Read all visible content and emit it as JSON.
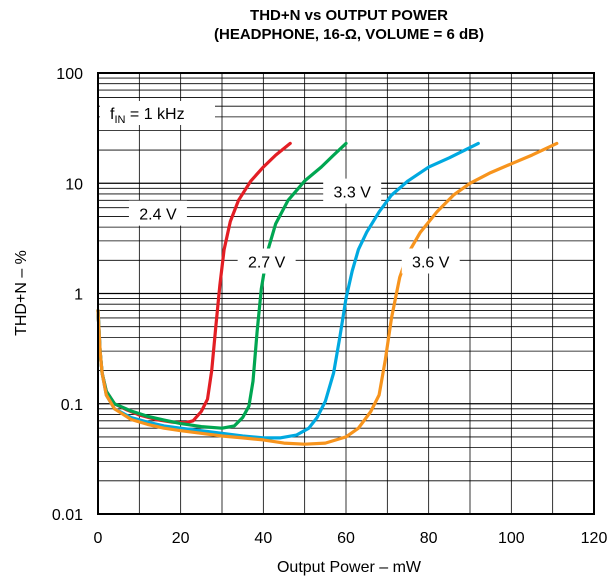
{
  "chart_data": {
    "type": "line",
    "title": "THD+N vs OUTPUT POWER",
    "subtitle": "(HEADPHONE, 16-Ω, VOLUME = 6 dB)",
    "xlabel": "Output Power – mW",
    "ylabel": "THD+N – %",
    "xlim": [
      0,
      120
    ],
    "ylim": [
      0.01,
      100
    ],
    "yscale": "log",
    "grid": true,
    "x_ticks": [
      "0",
      "20",
      "40",
      "60",
      "80",
      "100",
      "120"
    ],
    "y_ticks": [
      "0.01",
      "0.1",
      "1",
      "10",
      "100"
    ],
    "annotation": {
      "main": "f",
      "sub": "IN",
      "rest": " = 1 kHz"
    },
    "series": [
      {
        "name": "2.4 V",
        "color": "#e31e24",
        "x": [
          0,
          0.5,
          1,
          2,
          4,
          7,
          10,
          14,
          18,
          21,
          23,
          25,
          26.5,
          27.5,
          28.5,
          29.5,
          30.5,
          32,
          34,
          37,
          40,
          43,
          46.5
        ],
        "y": [
          0.7,
          0.3,
          0.19,
          0.13,
          0.1,
          0.088,
          0.079,
          0.072,
          0.068,
          0.067,
          0.07,
          0.085,
          0.11,
          0.2,
          0.5,
          1.2,
          2.5,
          4.5,
          7,
          10.5,
          14,
          18,
          23
        ]
      },
      {
        "name": "2.7 V",
        "color": "#00a651",
        "x": [
          0,
          0.5,
          1,
          2,
          4,
          8,
          12,
          16,
          20,
          25,
          30,
          33,
          35,
          36.5,
          37.5,
          38.5,
          39.5,
          41,
          43,
          46,
          50,
          54,
          57,
          60
        ],
        "y": [
          0.7,
          0.3,
          0.19,
          0.13,
          0.1,
          0.086,
          0.077,
          0.071,
          0.066,
          0.062,
          0.06,
          0.063,
          0.075,
          0.095,
          0.16,
          0.45,
          1.1,
          2.4,
          4.3,
          7,
          10.5,
          14,
          18,
          23
        ]
      },
      {
        "name": "3.3 V",
        "color": "#00a9e0",
        "x": [
          0,
          0.5,
          1,
          2,
          4,
          8,
          12,
          16,
          20,
          25,
          30,
          35,
          40,
          44,
          48,
          51,
          53,
          55,
          57,
          58.5,
          60,
          61.5,
          63,
          65,
          68,
          71,
          75,
          80,
          85,
          92
        ],
        "y": [
          0.7,
          0.3,
          0.19,
          0.12,
          0.09,
          0.075,
          0.068,
          0.063,
          0.06,
          0.057,
          0.054,
          0.051,
          0.049,
          0.049,
          0.052,
          0.06,
          0.075,
          0.105,
          0.19,
          0.4,
          0.9,
          1.6,
          2.5,
          3.6,
          5.5,
          7.8,
          10.5,
          14,
          17,
          23
        ]
      },
      {
        "name": "3.6 V",
        "color": "#f7941d",
        "x": [
          0,
          0.5,
          1,
          2,
          4,
          8,
          12,
          16,
          20,
          25,
          30,
          35,
          40,
          45,
          50,
          55,
          60,
          63,
          66,
          68,
          69.5,
          71,
          73,
          75,
          78,
          82,
          86,
          90,
          95,
          100,
          105,
          111
        ],
        "y": [
          0.7,
          0.3,
          0.19,
          0.12,
          0.09,
          0.072,
          0.065,
          0.06,
          0.057,
          0.054,
          0.051,
          0.049,
          0.047,
          0.044,
          0.043,
          0.044,
          0.05,
          0.06,
          0.085,
          0.12,
          0.25,
          0.6,
          1.4,
          2.3,
          3.6,
          5.5,
          7.8,
          10,
          12.5,
          15,
          18,
          23
        ]
      }
    ]
  }
}
